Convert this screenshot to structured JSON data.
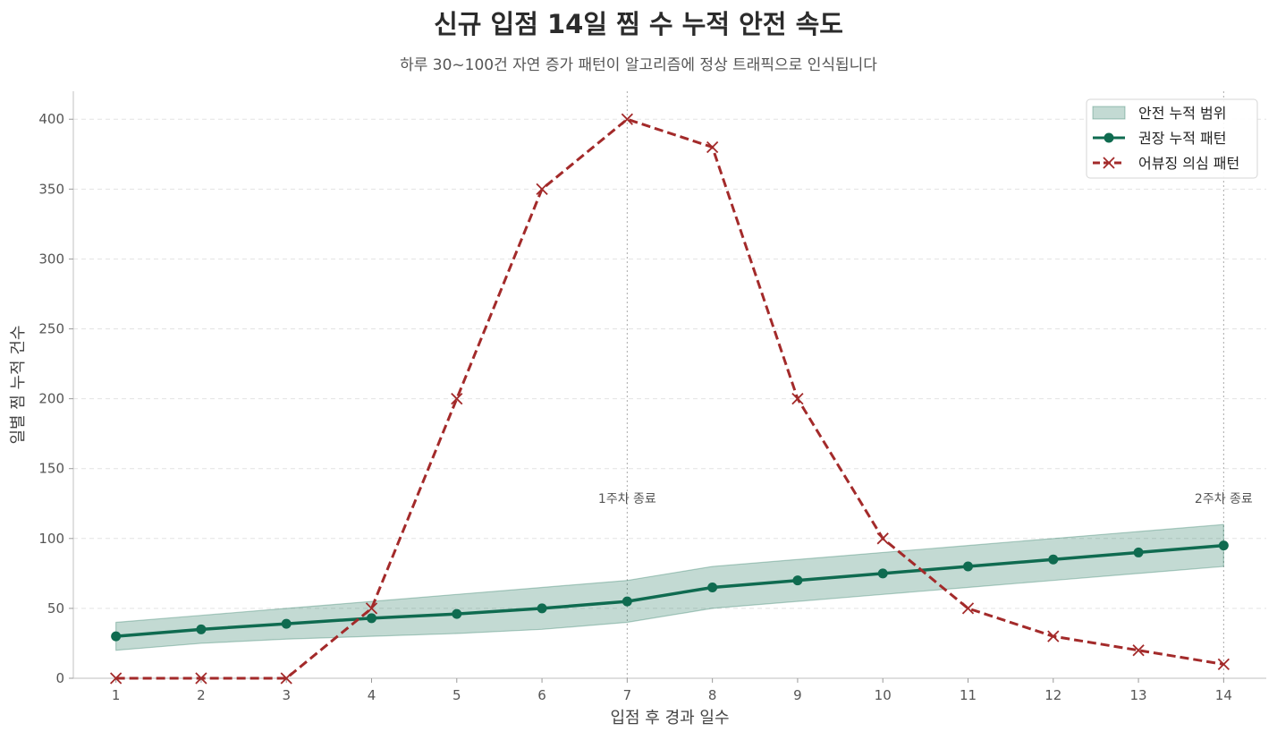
{
  "chart_data": {
    "type": "line",
    "title": "신규 입점 14일 찜 수 누적 안전 속도",
    "subtitle": "하루 30~100건 자연 증가 패턴이 알고리즘에 정상 트래픽으로 인식됩니다",
    "xlabel": "입점 후 경과 일수",
    "ylabel": "일별 찜 누적 건수",
    "x": [
      1,
      2,
      3,
      4,
      5,
      6,
      7,
      8,
      9,
      10,
      11,
      12,
      13,
      14
    ],
    "xlim": [
      0.5,
      14.5
    ],
    "ylim": [
      0,
      420
    ],
    "yticks": [
      0,
      50,
      100,
      150,
      200,
      250,
      300,
      350,
      400
    ],
    "grid": "horizontal-dashed",
    "legend_position": "top-right",
    "band": {
      "name": "안전 누적 범위",
      "color": "#0f6b50",
      "lower": [
        20,
        25,
        28,
        30,
        32,
        35,
        40,
        50,
        55,
        60,
        65,
        70,
        75,
        80
      ],
      "upper": [
        40,
        45,
        50,
        55,
        60,
        65,
        70,
        80,
        85,
        90,
        95,
        100,
        105,
        110
      ]
    },
    "series": [
      {
        "name": "권장 누적 패턴",
        "color": "#0f6b50",
        "marker": "circle",
        "dash": "solid",
        "values": [
          30,
          35,
          39,
          43,
          46,
          50,
          55,
          65,
          70,
          75,
          80,
          85,
          90,
          95
        ]
      },
      {
        "name": "어뷰징 의심 패턴",
        "color": "#a32a2a",
        "marker": "x",
        "dash": "dashed",
        "values": [
          0,
          0,
          0,
          50,
          200,
          350,
          400,
          380,
          200,
          100,
          50,
          30,
          20,
          10
        ]
      }
    ],
    "annotations": [
      {
        "x": 7,
        "label": "1주차 종료"
      },
      {
        "x": 14,
        "label": "2주차 종료"
      }
    ]
  }
}
